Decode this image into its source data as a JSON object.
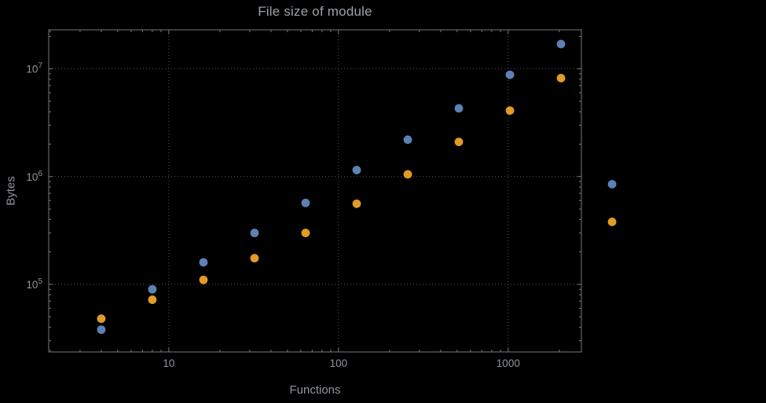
{
  "page": {
    "background": "#000000"
  },
  "chart_data": {
    "type": "scatter",
    "title": "File size of module",
    "xlabel": "Functions",
    "ylabel": "Bytes",
    "x_scale": "log",
    "y_scale": "log",
    "xlim": [
      1.96,
      2700
    ],
    "ylim": [
      23600,
      23000000
    ],
    "grid": "dotted lines at major ticks, both axes",
    "legend": "none",
    "x_ticks": [
      {
        "value": 10,
        "label": "10"
      },
      {
        "value": 100,
        "label": "100"
      },
      {
        "value": 1000,
        "label": "1000"
      }
    ],
    "y_ticks": [
      {
        "value": 100000,
        "label": "10^5"
      },
      {
        "value": 1000000,
        "label": "10^6"
      },
      {
        "value": 10000000,
        "label": "10^7"
      }
    ],
    "x": [
      4,
      8,
      16,
      32,
      64,
      128,
      256,
      512,
      1024,
      2048,
      4096
    ],
    "series": [
      {
        "name": "blue-series",
        "color": "#5E81B5",
        "values": [
          38000,
          90000,
          160000,
          300000,
          570000,
          1150000,
          2200000,
          4300000,
          8800000,
          17000000,
          850000
        ]
      },
      {
        "name": "orange-series",
        "color": "#E19C24",
        "values": [
          48000,
          72000,
          110000,
          175000,
          300000,
          560000,
          1050000,
          2100000,
          4100000,
          8200000,
          380000
        ]
      }
    ],
    "colors": {
      "frame": "#73797e",
      "grid": "#4e5357",
      "tick_text": "#8f959b",
      "title_text": "#9da2a7",
      "axis_label_text": "#8f959b"
    },
    "note": "last data point of each series (x=4096) is plotted outside the right frame edge"
  }
}
